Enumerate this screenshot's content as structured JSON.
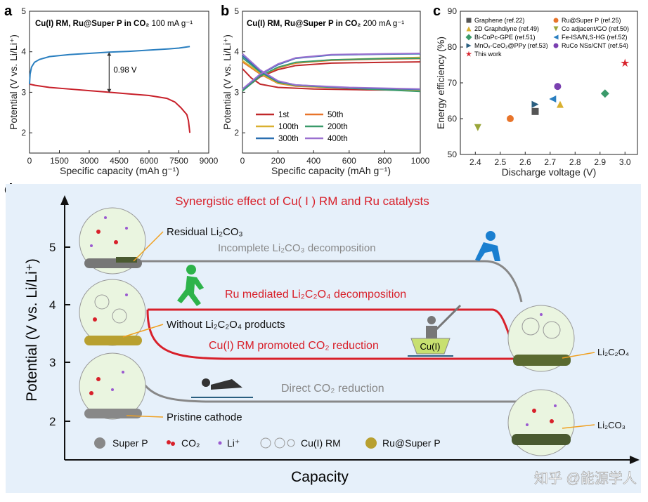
{
  "chart_data": [
    {
      "panel": "a",
      "type": "line",
      "title": "Cu(I) RM, Ru@Super P in CO₂",
      "title_suffix": "100 mA g⁻¹",
      "xlabel": "Specific capacity (mAh g⁻¹)",
      "ylabel": "Potential (V vs. Li/Li⁺)",
      "xlim": [
        0,
        9000
      ],
      "ylim": [
        1.5,
        5
      ],
      "xticks": [
        "0",
        "1500",
        "3000",
        "4500",
        "6000",
        "7500",
        "9000"
      ],
      "yticks": [
        "2",
        "3",
        "4",
        "5"
      ],
      "annotation": "0.98 V",
      "series": [
        {
          "role": "discharge",
          "color": "#c8202a",
          "points": [
            [
              0,
              3.2
            ],
            [
              300,
              3.17
            ],
            [
              1000,
              3.12
            ],
            [
              2000,
              3.08
            ],
            [
              3000,
              3.04
            ],
            [
              4000,
              3.0
            ],
            [
              5000,
              2.96
            ],
            [
              6000,
              2.92
            ],
            [
              6900,
              2.85
            ],
            [
              7300,
              2.76
            ],
            [
              7600,
              2.62
            ],
            [
              7900,
              2.45
            ],
            [
              7980,
              2.3
            ],
            [
              8050,
              2.0
            ]
          ]
        },
        {
          "role": "charge",
          "color": "#2a7fc0",
          "points": [
            [
              0,
              3.2
            ],
            [
              30,
              3.45
            ],
            [
              100,
              3.62
            ],
            [
              250,
              3.74
            ],
            [
              500,
              3.81
            ],
            [
              1000,
              3.88
            ],
            [
              2000,
              3.93
            ],
            [
              3000,
              3.96
            ],
            [
              4000,
              3.99
            ],
            [
              5000,
              4.01
            ],
            [
              6000,
              4.04
            ],
            [
              7000,
              4.07
            ],
            [
              7500,
              4.09
            ],
            [
              8050,
              4.13
            ]
          ]
        }
      ]
    },
    {
      "panel": "b",
      "type": "line",
      "title": "Cu(I) RM, Ru@Super P in CO₂",
      "title_suffix": "200 mA g⁻¹",
      "xlabel": "Specific capacity (mAh g⁻¹)",
      "ylabel": "Potential (V vs. Li/Li⁺)",
      "xlim": [
        0,
        1000
      ],
      "ylim": [
        1.5,
        5
      ],
      "xticks": [
        "0",
        "200",
        "400",
        "600",
        "800",
        "1000"
      ],
      "yticks": [
        "2",
        "3",
        "4",
        "5"
      ],
      "legend": "bottom-left",
      "series": [
        {
          "name": "1st",
          "color": "#c0282a",
          "discharge": [
            [
              0,
              3.58
            ],
            [
              50,
              3.35
            ],
            [
              100,
              3.2
            ],
            [
              200,
              3.12
            ],
            [
              400,
              3.08
            ],
            [
              700,
              3.06
            ],
            [
              1000,
              3.05
            ]
          ],
          "charge": [
            [
              0,
              3.05
            ],
            [
              100,
              3.38
            ],
            [
              200,
              3.56
            ],
            [
              300,
              3.66
            ],
            [
              500,
              3.72
            ],
            [
              800,
              3.74
            ],
            [
              1000,
              3.75
            ]
          ]
        },
        {
          "name": "50th",
          "color": "#e8742a",
          "discharge": [
            [
              0,
              3.75
            ],
            [
              100,
              3.45
            ],
            [
              200,
              3.22
            ],
            [
              300,
              3.15
            ],
            [
              600,
              3.1
            ],
            [
              1000,
              3.05
            ]
          ],
          "charge": [
            [
              0,
              3.05
            ],
            [
              100,
              3.4
            ],
            [
              200,
              3.6
            ],
            [
              300,
              3.72
            ],
            [
              500,
              3.79
            ],
            [
              800,
              3.82
            ],
            [
              1000,
              3.83
            ]
          ]
        },
        {
          "name": "100th",
          "color": "#d9b030",
          "discharge": [
            [
              0,
              3.78
            ],
            [
              100,
              3.47
            ],
            [
              200,
              3.23
            ],
            [
              300,
              3.16
            ],
            [
              600,
              3.1
            ],
            [
              1000,
              3.05
            ]
          ],
          "charge": [
            [
              0,
              3.05
            ],
            [
              100,
              3.4
            ],
            [
              200,
              3.61
            ],
            [
              300,
              3.73
            ],
            [
              500,
              3.8
            ],
            [
              800,
              3.84
            ],
            [
              1000,
              3.86
            ]
          ]
        },
        {
          "name": "200th",
          "color": "#3a9a6a",
          "discharge": [
            [
              0,
              3.85
            ],
            [
              100,
              3.5
            ],
            [
              200,
              3.25
            ],
            [
              300,
              3.17
            ],
            [
              600,
              3.1
            ],
            [
              1000,
              3.02
            ]
          ],
          "charge": [
            [
              0,
              3.03
            ],
            [
              100,
              3.4
            ],
            [
              200,
              3.62
            ],
            [
              300,
              3.74
            ],
            [
              500,
              3.8
            ],
            [
              800,
              3.83
            ],
            [
              1000,
              3.84
            ]
          ]
        },
        {
          "name": "300th",
          "color": "#2a6fb0",
          "discharge": [
            [
              0,
              3.9
            ],
            [
              100,
              3.53
            ],
            [
              200,
              3.27
            ],
            [
              300,
              3.18
            ],
            [
              600,
              3.11
            ],
            [
              1000,
              3.07
            ]
          ],
          "charge": [
            [
              0,
              3.07
            ],
            [
              100,
              3.44
            ],
            [
              200,
              3.68
            ],
            [
              300,
              3.84
            ],
            [
              500,
              3.92
            ],
            [
              800,
              3.94
            ],
            [
              1000,
              3.95
            ]
          ]
        },
        {
          "name": "400th",
          "color": "#9a70d0",
          "discharge": [
            [
              0,
              3.95
            ],
            [
              100,
              3.55
            ],
            [
              200,
              3.28
            ],
            [
              300,
              3.18
            ],
            [
              600,
              3.12
            ],
            [
              1000,
              3.08
            ]
          ],
          "charge": [
            [
              0,
              3.08
            ],
            [
              100,
              3.45
            ],
            [
              200,
              3.7
            ],
            [
              300,
              3.85
            ],
            [
              500,
              3.93
            ],
            [
              800,
              3.95
            ],
            [
              1000,
              3.96
            ]
          ]
        }
      ]
    },
    {
      "panel": "c",
      "type": "scatter",
      "xlabel": "Discharge voltage (V)",
      "ylabel": "Energy efficiency (%)",
      "xlim": [
        2.34,
        3.05
      ],
      "ylim": [
        50,
        90
      ],
      "xticks": [
        "2.4",
        "2.5",
        "2.6",
        "2.7",
        "2.8",
        "2.9",
        "3.0"
      ],
      "yticks": [
        "50",
        "60",
        "70",
        "80",
        "90"
      ],
      "legend": "top",
      "series": [
        {
          "name": "Graphene (ref.22)",
          "marker": "square",
          "color": "#555555",
          "x": 2.64,
          "y": 62
        },
        {
          "name": "Ru@Super P (ref.25)",
          "marker": "circle",
          "color": "#e8742a",
          "x": 2.54,
          "y": 60
        },
        {
          "name": "2D Graphdiyne (ref.49)",
          "marker": "triangle-up",
          "color": "#d9b030",
          "x": 2.74,
          "y": 64
        },
        {
          "name": "Co adjacent/GO (ref.50)",
          "marker": "triangle-down",
          "color": "#9aa63a",
          "x": 2.41,
          "y": 57.5
        },
        {
          "name": "Bi-CoPc-GPE (ref.51)",
          "marker": "diamond",
          "color": "#3a9a6a",
          "x": 2.92,
          "y": 67
        },
        {
          "name": "Fe-ISA/N,S-HG (ref.52)",
          "marker": "triangle-left",
          "color": "#2a7fc0",
          "x": 2.71,
          "y": 65.5
        },
        {
          "name": "MnOₓ-CeO₂@PPy (ref.53)",
          "marker": "triangle-right",
          "color": "#2a5f80",
          "x": 2.64,
          "y": 64
        },
        {
          "name": "RuCo NSs/CNT (ref.54)",
          "marker": "circle",
          "color": "#7a40b0",
          "x": 2.73,
          "y": 69
        },
        {
          "name": "This work",
          "marker": "star",
          "color": "#d8202a",
          "x": 3.0,
          "y": 75.5
        }
      ]
    }
  ],
  "panel_labels": {
    "a": "a",
    "b": "b",
    "c": "c",
    "d": "d"
  },
  "diagram": {
    "title": "Synergistic effect of Cu( I ) RM and Ru catalysts",
    "ylabel": "Potential (V vs. Li/Li⁺)",
    "xlabel": "Capacity",
    "yticks": [
      "5",
      "4",
      "3",
      "2"
    ],
    "labels": {
      "residual": "Residual Li₂CO₃",
      "incomplete": "Incomplete Li₂CO₃ decomposition",
      "ru_mediated": "Ru mediated Li₂C₂O₄ decomposition",
      "without": "Without Li₂C₂O₄ products",
      "cu_promoted": "Cu(I) RM promoted CO₂ reduction",
      "cu_boat": "Cu(I)",
      "li2c2o4": "Li₂C₂O₄",
      "direct": "Direct CO₂ reduction",
      "pristine": "Pristine cathode",
      "li2co3": "Li₂CO₃"
    },
    "legend": [
      "Super P",
      "CO₂",
      "Li⁺",
      "Cu(I) RM",
      "Ru@Super P"
    ],
    "colors": {
      "background": "#e6f0fa",
      "red": "#d8202a",
      "gray": "#888888",
      "figure": "#1a7fd0",
      "runner": "#2db34a"
    },
    "watermark": "知乎 @能源学人"
  }
}
